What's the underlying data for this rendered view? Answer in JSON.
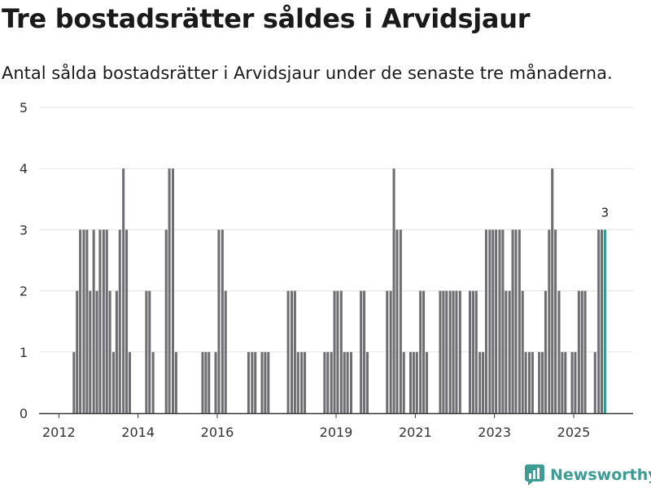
{
  "title": "Tre bostadsrätter såldes i Arvidsjaur",
  "subtitle": "Antal sålda bostadsrätter i Arvidsjaur under de senaste tre månaderna.",
  "brand": {
    "name": "Newsworthy",
    "color": "#3c9c96"
  },
  "colors": {
    "bar": "#6e6d72",
    "highlight": "#2a9d8f",
    "grid": "#e3e3e3",
    "axis": "#333333"
  },
  "chart_data": {
    "type": "bar",
    "title": "Tre bostadsrätter såldes i Arvidsjaur",
    "xlabel": "",
    "ylabel": "",
    "ylim": [
      0,
      5
    ],
    "yticks": [
      0,
      1,
      2,
      3,
      4,
      5
    ],
    "xticks": [
      {
        "label": "2012",
        "x": 2012.0
      },
      {
        "label": "2014",
        "x": 2014.0
      },
      {
        "label": "2016",
        "x": 2016.0
      },
      {
        "label": "2019",
        "x": 2019.0
      },
      {
        "label": "2021",
        "x": 2021.0
      },
      {
        "label": "2023",
        "x": 2023.0
      },
      {
        "label": "2025",
        "x": 2025.0
      }
    ],
    "x_start": 2011.5,
    "x_end": 2026.5,
    "bar_width_months": 1,
    "highlight_label": "3",
    "bars": [
      {
        "x": 2012.38,
        "y": 1
      },
      {
        "x": 2012.46,
        "y": 2
      },
      {
        "x": 2012.54,
        "y": 3
      },
      {
        "x": 2012.63,
        "y": 3
      },
      {
        "x": 2012.71,
        "y": 3
      },
      {
        "x": 2012.79,
        "y": 2
      },
      {
        "x": 2012.88,
        "y": 3
      },
      {
        "x": 2012.96,
        "y": 2
      },
      {
        "x": 2013.04,
        "y": 3
      },
      {
        "x": 2013.13,
        "y": 3
      },
      {
        "x": 2013.21,
        "y": 3
      },
      {
        "x": 2013.29,
        "y": 2
      },
      {
        "x": 2013.38,
        "y": 1
      },
      {
        "x": 2013.46,
        "y": 2
      },
      {
        "x": 2013.54,
        "y": 3
      },
      {
        "x": 2013.63,
        "y": 4
      },
      {
        "x": 2013.71,
        "y": 3
      },
      {
        "x": 2013.79,
        "y": 1
      },
      {
        "x": 2014.21,
        "y": 2
      },
      {
        "x": 2014.29,
        "y": 2
      },
      {
        "x": 2014.38,
        "y": 1
      },
      {
        "x": 2014.71,
        "y": 3
      },
      {
        "x": 2014.79,
        "y": 4
      },
      {
        "x": 2014.88,
        "y": 4
      },
      {
        "x": 2014.96,
        "y": 1
      },
      {
        "x": 2015.63,
        "y": 1
      },
      {
        "x": 2015.71,
        "y": 1
      },
      {
        "x": 2015.79,
        "y": 1
      },
      {
        "x": 2015.96,
        "y": 1
      },
      {
        "x": 2016.04,
        "y": 3
      },
      {
        "x": 2016.13,
        "y": 3
      },
      {
        "x": 2016.21,
        "y": 2
      },
      {
        "x": 2016.79,
        "y": 1
      },
      {
        "x": 2016.88,
        "y": 1
      },
      {
        "x": 2016.96,
        "y": 1
      },
      {
        "x": 2017.13,
        "y": 1
      },
      {
        "x": 2017.21,
        "y": 1
      },
      {
        "x": 2017.29,
        "y": 1
      },
      {
        "x": 2017.79,
        "y": 2
      },
      {
        "x": 2017.88,
        "y": 2
      },
      {
        "x": 2017.96,
        "y": 2
      },
      {
        "x": 2018.04,
        "y": 1
      },
      {
        "x": 2018.13,
        "y": 1
      },
      {
        "x": 2018.21,
        "y": 1
      },
      {
        "x": 2018.71,
        "y": 1
      },
      {
        "x": 2018.79,
        "y": 1
      },
      {
        "x": 2018.88,
        "y": 1
      },
      {
        "x": 2018.96,
        "y": 2
      },
      {
        "x": 2019.04,
        "y": 2
      },
      {
        "x": 2019.13,
        "y": 2
      },
      {
        "x": 2019.21,
        "y": 1
      },
      {
        "x": 2019.29,
        "y": 1
      },
      {
        "x": 2019.38,
        "y": 1
      },
      {
        "x": 2019.63,
        "y": 2
      },
      {
        "x": 2019.71,
        "y": 2
      },
      {
        "x": 2019.79,
        "y": 1
      },
      {
        "x": 2020.29,
        "y": 2
      },
      {
        "x": 2020.38,
        "y": 2
      },
      {
        "x": 2020.46,
        "y": 4
      },
      {
        "x": 2020.54,
        "y": 3
      },
      {
        "x": 2020.63,
        "y": 3
      },
      {
        "x": 2020.71,
        "y": 1
      },
      {
        "x": 2020.88,
        "y": 1
      },
      {
        "x": 2020.96,
        "y": 1
      },
      {
        "x": 2021.04,
        "y": 1
      },
      {
        "x": 2021.13,
        "y": 2
      },
      {
        "x": 2021.21,
        "y": 2
      },
      {
        "x": 2021.29,
        "y": 1
      },
      {
        "x": 2021.63,
        "y": 2
      },
      {
        "x": 2021.71,
        "y": 2
      },
      {
        "x": 2021.79,
        "y": 2
      },
      {
        "x": 2021.88,
        "y": 2
      },
      {
        "x": 2021.96,
        "y": 2
      },
      {
        "x": 2022.04,
        "y": 2
      },
      {
        "x": 2022.13,
        "y": 2
      },
      {
        "x": 2022.38,
        "y": 2
      },
      {
        "x": 2022.46,
        "y": 2
      },
      {
        "x": 2022.54,
        "y": 2
      },
      {
        "x": 2022.63,
        "y": 1
      },
      {
        "x": 2022.71,
        "y": 1
      },
      {
        "x": 2022.79,
        "y": 3
      },
      {
        "x": 2022.88,
        "y": 3
      },
      {
        "x": 2022.96,
        "y": 3
      },
      {
        "x": 2023.04,
        "y": 3
      },
      {
        "x": 2023.13,
        "y": 3
      },
      {
        "x": 2023.21,
        "y": 3
      },
      {
        "x": 2023.29,
        "y": 2
      },
      {
        "x": 2023.38,
        "y": 2
      },
      {
        "x": 2023.46,
        "y": 3
      },
      {
        "x": 2023.54,
        "y": 3
      },
      {
        "x": 2023.63,
        "y": 3
      },
      {
        "x": 2023.71,
        "y": 2
      },
      {
        "x": 2023.79,
        "y": 1
      },
      {
        "x": 2023.88,
        "y": 1
      },
      {
        "x": 2023.96,
        "y": 1
      },
      {
        "x": 2024.13,
        "y": 1
      },
      {
        "x": 2024.21,
        "y": 1
      },
      {
        "x": 2024.29,
        "y": 2
      },
      {
        "x": 2024.38,
        "y": 3
      },
      {
        "x": 2024.46,
        "y": 4
      },
      {
        "x": 2024.54,
        "y": 3
      },
      {
        "x": 2024.63,
        "y": 2
      },
      {
        "x": 2024.71,
        "y": 1
      },
      {
        "x": 2024.79,
        "y": 1
      },
      {
        "x": 2024.96,
        "y": 1
      },
      {
        "x": 2025.04,
        "y": 1
      },
      {
        "x": 2025.13,
        "y": 2
      },
      {
        "x": 2025.21,
        "y": 2
      },
      {
        "x": 2025.29,
        "y": 2
      },
      {
        "x": 2025.54,
        "y": 1
      },
      {
        "x": 2025.63,
        "y": 3
      },
      {
        "x": 2025.71,
        "y": 3
      },
      {
        "x": 2025.79,
        "y": 3,
        "highlight": true
      }
    ]
  }
}
